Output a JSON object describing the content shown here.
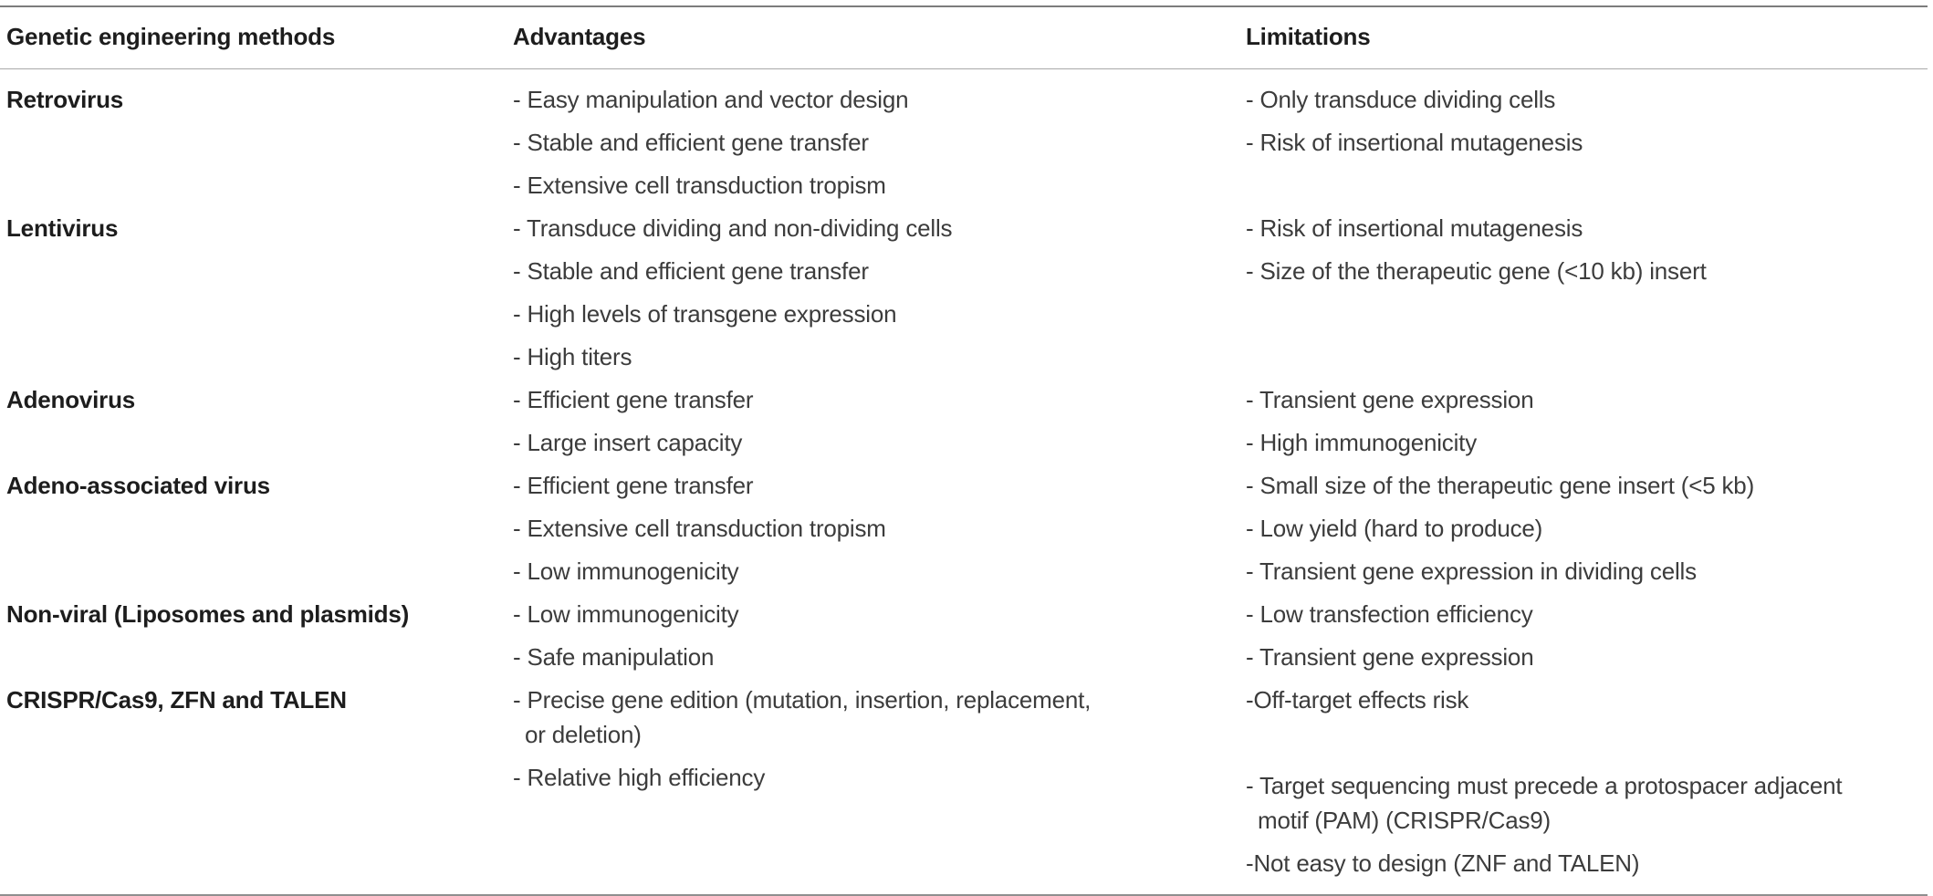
{
  "table": {
    "headers": {
      "methods": "Genetic engineering methods",
      "advantages": "Advantages",
      "limitations": "Limitations"
    },
    "rows": [
      {
        "method": "Retrovirus",
        "advantages": [
          "- Easy manipulation and vector design",
          "- Stable and efficient gene transfer",
          "- Extensive cell transduction tropism"
        ],
        "limitations": [
          "- Only transduce dividing cells",
          "- Risk of insertional mutagenesis"
        ]
      },
      {
        "method": "Lentivirus",
        "advantages": [
          "- Transduce dividing and non-dividing cells",
          "- Stable and efficient gene transfer",
          "- High levels of transgene expression",
          "- High titers"
        ],
        "limitations": [
          "- Risk of insertional mutagenesis",
          "- Size of the therapeutic gene (<10 kb) insert"
        ]
      },
      {
        "method": "Adenovirus",
        "advantages": [
          "- Efficient gene transfer",
          "- Large insert capacity"
        ],
        "limitations": [
          "- Transient gene expression",
          "- High immunogenicity"
        ]
      },
      {
        "method": "Adeno-associated virus",
        "advantages": [
          "- Efficient gene transfer",
          "- Extensive cell transduction tropism",
          "- Low immunogenicity"
        ],
        "limitations": [
          "- Small size of the therapeutic gene insert (<5 kb)",
          "- Low yield (hard to produce)",
          "- Transient gene expression in dividing cells"
        ]
      },
      {
        "method": "Non-viral (Liposomes and plasmids)",
        "advantages": [
          "- Low immunogenicity",
          "- Safe manipulation"
        ],
        "limitations": [
          "- Low transfection efficiency",
          "- Transient gene expression"
        ]
      },
      {
        "method": "CRISPR/Cas9, ZFN and TALEN",
        "advantages": [
          "- Precise gene edition (mutation, insertion, replacement,",
          "or deletion)",
          "- Relative high efficiency"
        ],
        "limitations": [
          "-Off-target effects risk",
          "",
          "- Target sequencing must precede a protospacer adjacent",
          "motif (PAM) (CRISPR/Cas9)",
          "-Not easy to design (ZNF and TALEN)"
        ]
      }
    ],
    "colors": {
      "body_text": "#3c3c3c",
      "bold_text": "#1d1d1d",
      "rule_top": "#7c7c7c",
      "rule_mid": "#a9a9a9",
      "rule_bottom": "#8f8f8f"
    }
  }
}
